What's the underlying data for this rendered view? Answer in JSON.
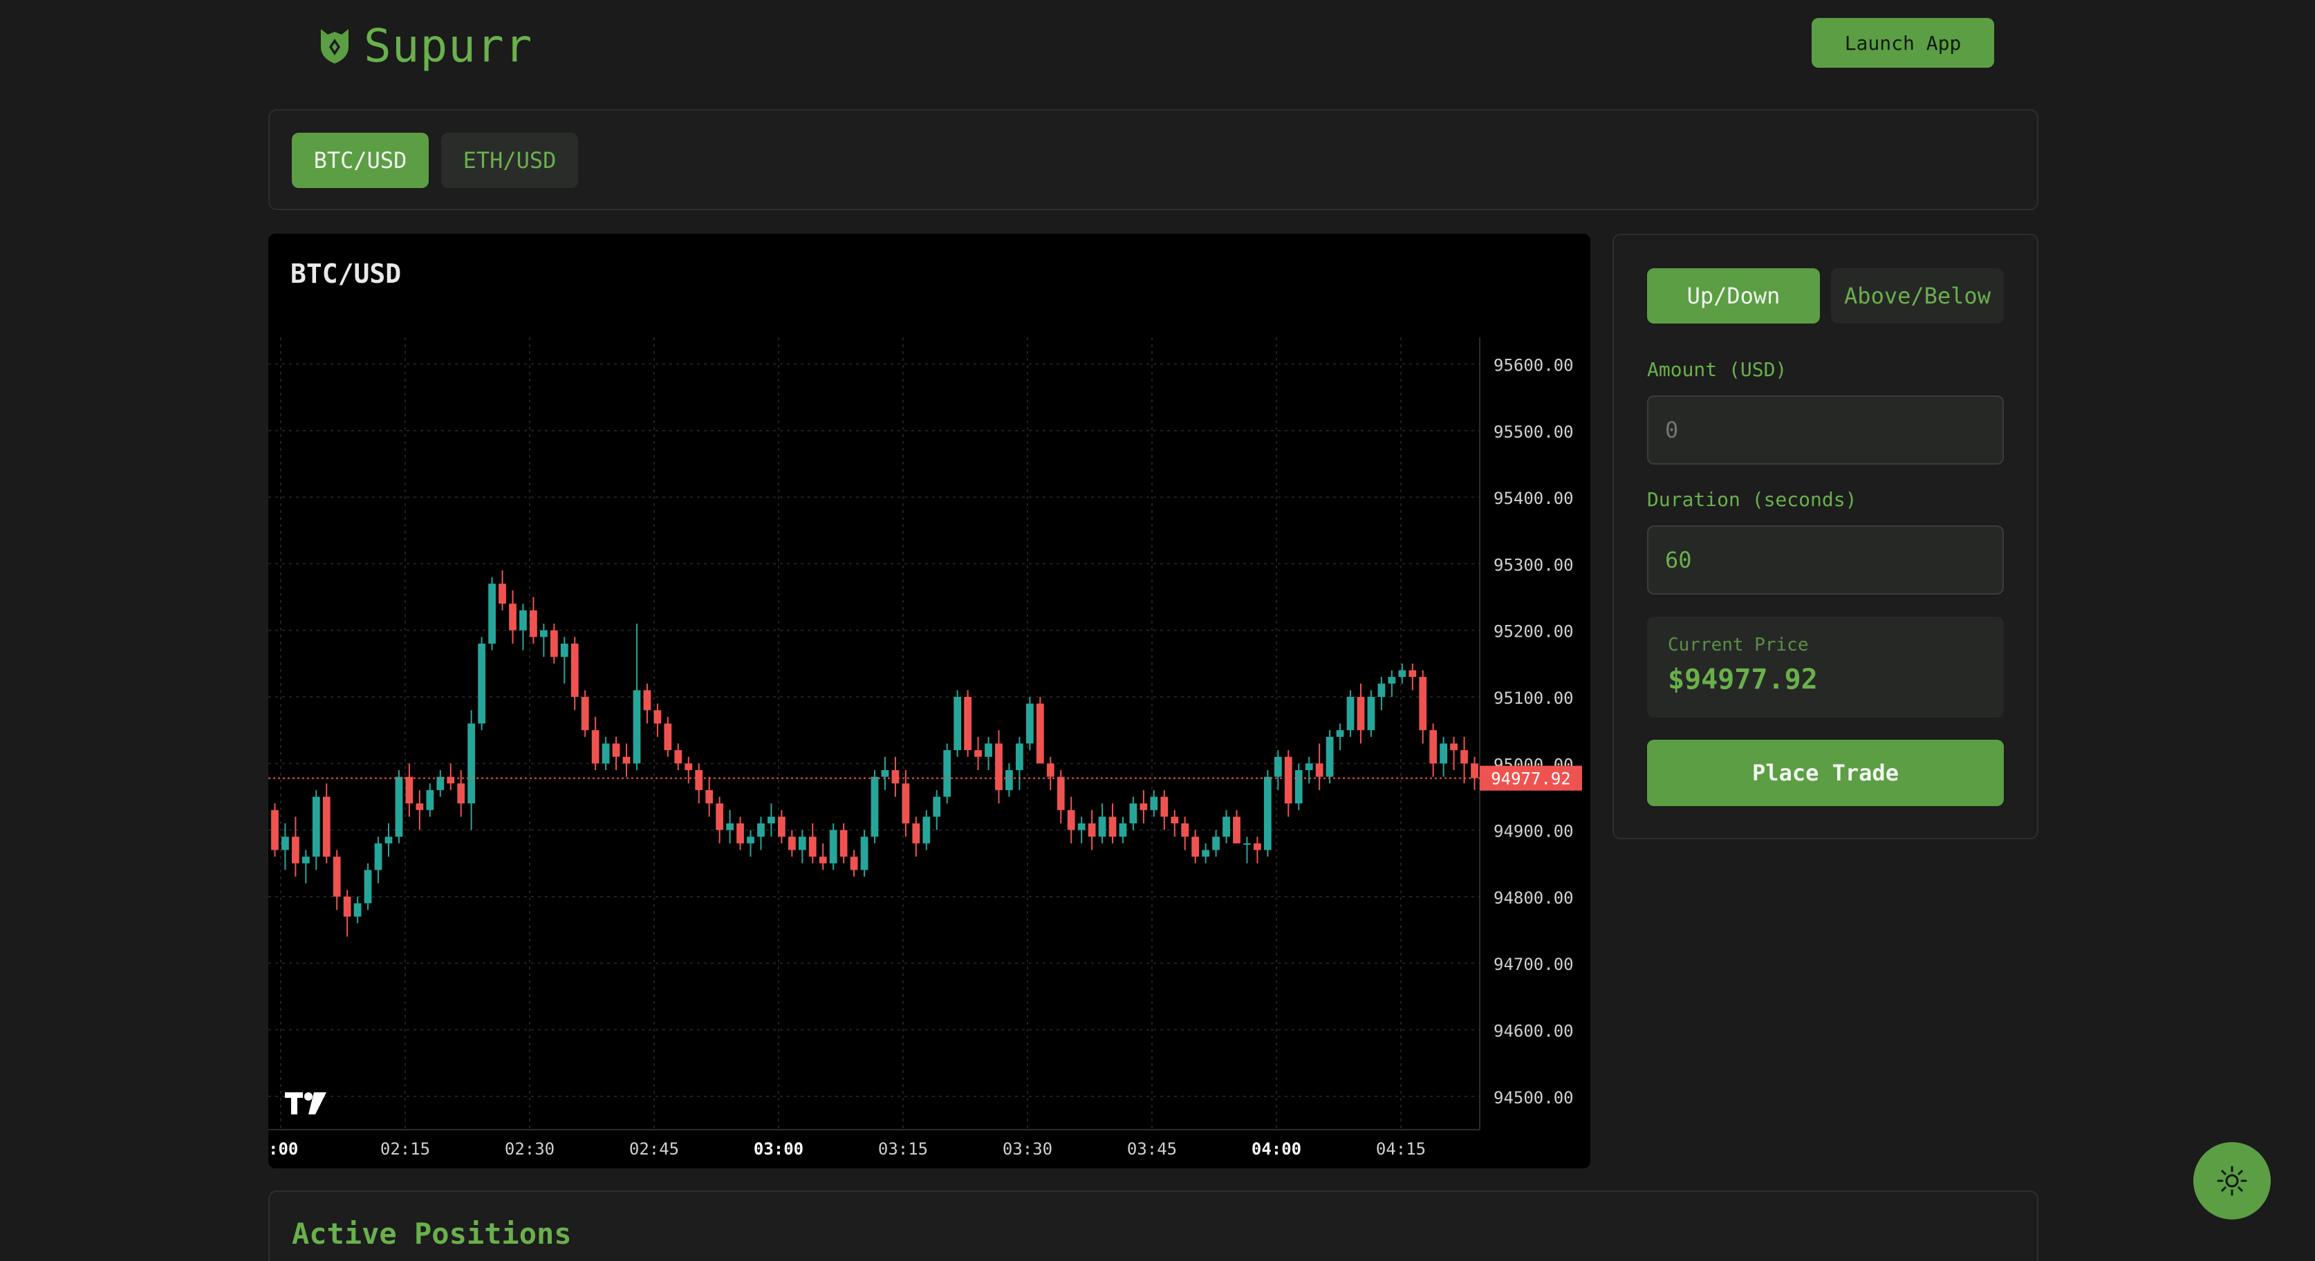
{
  "header": {
    "brand": "Supurr",
    "launch_label": "Launch App"
  },
  "pairs": [
    {
      "label": "BTC/USD",
      "active": true
    },
    {
      "label": "ETH/USD",
      "active": false
    }
  ],
  "chart": {
    "title": "BTC/USD",
    "last_price_label": "94977.92"
  },
  "chart_data": {
    "type": "candlestick",
    "title": "BTC/USD",
    "x_ticks": [
      ":00",
      "02:15",
      "02:30",
      "02:45",
      "03:00",
      "03:15",
      "03:30",
      "03:45",
      "04:00",
      "04:15"
    ],
    "bold_x_ticks": [
      ":00",
      "03:00",
      "04:00"
    ],
    "y_ticks": [
      "95600.00",
      "95500.00",
      "95400.00",
      "95300.00",
      "95200.00",
      "95100.00",
      "95000.00",
      "94900.00",
      "94800.00",
      "94700.00",
      "94600.00",
      "94500.00"
    ],
    "ylim": [
      94450,
      95640
    ],
    "last_price": 94977.92,
    "up_color": "#26a69a",
    "down_color": "#ef5350",
    "candles_ohlc": [
      [
        94930,
        94940,
        94860,
        94870
      ],
      [
        94870,
        94910,
        94840,
        94890
      ],
      [
        94890,
        94920,
        94830,
        94850
      ],
      [
        94850,
        94870,
        94820,
        94860
      ],
      [
        94860,
        94960,
        94840,
        94950
      ],
      [
        94950,
        94970,
        94850,
        94860
      ],
      [
        94860,
        94870,
        94780,
        94800
      ],
      [
        94800,
        94810,
        94740,
        94770
      ],
      [
        94770,
        94800,
        94760,
        94790
      ],
      [
        94790,
        94850,
        94780,
        94840
      ],
      [
        94840,
        94890,
        94820,
        94880
      ],
      [
        94880,
        94910,
        94860,
        94890
      ],
      [
        94890,
        94990,
        94880,
        94980
      ],
      [
        94980,
        95000,
        94920,
        94940
      ],
      [
        94940,
        94960,
        94900,
        94930
      ],
      [
        94930,
        94970,
        94920,
        94960
      ],
      [
        94960,
        94990,
        94950,
        94980
      ],
      [
        94980,
        95000,
        94960,
        94970
      ],
      [
        94970,
        94990,
        94920,
        94940
      ],
      [
        94940,
        95080,
        94900,
        95060
      ],
      [
        95060,
        95190,
        95050,
        95180
      ],
      [
        95180,
        95280,
        95170,
        95270
      ],
      [
        95270,
        95290,
        95230,
        95240
      ],
      [
        95240,
        95260,
        95180,
        95200
      ],
      [
        95200,
        95240,
        95170,
        95230
      ],
      [
        95230,
        95250,
        95180,
        95190
      ],
      [
        95190,
        95210,
        95160,
        95200
      ],
      [
        95200,
        95210,
        95150,
        95160
      ],
      [
        95160,
        95190,
        95120,
        95180
      ],
      [
        95180,
        95190,
        95080,
        95100
      ],
      [
        95100,
        95110,
        95040,
        95050
      ],
      [
        95050,
        95070,
        94990,
        95000
      ],
      [
        95000,
        95040,
        94990,
        95030
      ],
      [
        95030,
        95040,
        94990,
        95010
      ],
      [
        95010,
        95030,
        94980,
        95000
      ],
      [
        95000,
        95210,
        94990,
        95110
      ],
      [
        95110,
        95120,
        95060,
        95080
      ],
      [
        95080,
        95090,
        95040,
        95060
      ],
      [
        95060,
        95070,
        95010,
        95020
      ],
      [
        95020,
        95030,
        94990,
        95000
      ],
      [
        95000,
        95010,
        94970,
        94990
      ],
      [
        94990,
        95000,
        94940,
        94960
      ],
      [
        94960,
        94980,
        94920,
        94940
      ],
      [
        94940,
        94950,
        94880,
        94900
      ],
      [
        94900,
        94930,
        94880,
        94910
      ],
      [
        94910,
        94920,
        94870,
        94880
      ],
      [
        94880,
        94900,
        94860,
        94890
      ],
      [
        94890,
        94920,
        94870,
        94910
      ],
      [
        94910,
        94940,
        94890,
        94920
      ],
      [
        94920,
        94930,
        94880,
        94890
      ],
      [
        94890,
        94900,
        94860,
        94870
      ],
      [
        94870,
        94900,
        94850,
        94890
      ],
      [
        94890,
        94910,
        94850,
        94860
      ],
      [
        94860,
        94880,
        94840,
        94850
      ],
      [
        94850,
        94910,
        94840,
        94900
      ],
      [
        94900,
        94910,
        94850,
        94860
      ],
      [
        94860,
        94870,
        94830,
        94840
      ],
      [
        94840,
        94900,
        94830,
        94890
      ],
      [
        94890,
        94990,
        94880,
        94980
      ],
      [
        94980,
        95010,
        94960,
        94990
      ],
      [
        94990,
        95010,
        94950,
        94970
      ],
      [
        94970,
        94990,
        94890,
        94910
      ],
      [
        94910,
        94920,
        94860,
        94880
      ],
      [
        94880,
        94930,
        94870,
        94920
      ],
      [
        94920,
        94960,
        94900,
        94950
      ],
      [
        94950,
        95030,
        94940,
        95020
      ],
      [
        95020,
        95110,
        95010,
        95100
      ],
      [
        95100,
        95110,
        95010,
        95020
      ],
      [
        95020,
        95040,
        94990,
        95010
      ],
      [
        95010,
        95040,
        94990,
        95030
      ],
      [
        95030,
        95050,
        94940,
        94960
      ],
      [
        94960,
        95000,
        94950,
        94990
      ],
      [
        94990,
        95040,
        94960,
        95030
      ],
      [
        95030,
        95100,
        95020,
        95090
      ],
      [
        95090,
        95100,
        95020,
        95000
      ],
      [
        95000,
        95010,
        94960,
        94980
      ],
      [
        94980,
        94990,
        94910,
        94930
      ],
      [
        94930,
        94950,
        94880,
        94900
      ],
      [
        94900,
        94920,
        94880,
        94910
      ],
      [
        94910,
        94930,
        94870,
        94890
      ],
      [
        94890,
        94940,
        94880,
        94920
      ],
      [
        94920,
        94940,
        94880,
        94890
      ],
      [
        94890,
        94920,
        94880,
        94910
      ],
      [
        94910,
        94950,
        94900,
        94940
      ],
      [
        94940,
        94960,
        94910,
        94930
      ],
      [
        94930,
        94960,
        94920,
        94950
      ],
      [
        94950,
        94960,
        94900,
        94920
      ],
      [
        94920,
        94930,
        94890,
        94910
      ],
      [
        94910,
        94920,
        94870,
        94890
      ],
      [
        94890,
        94900,
        94850,
        94860
      ],
      [
        94860,
        94880,
        94850,
        94870
      ],
      [
        94870,
        94900,
        94860,
        94890
      ],
      [
        94890,
        94930,
        94880,
        94920
      ],
      [
        94920,
        94930,
        94880,
        94880
      ],
      [
        94880,
        94890,
        94850,
        94880
      ],
      [
        94880,
        94890,
        94850,
        94870
      ],
      [
        94870,
        94990,
        94860,
        94980
      ],
      [
        94980,
        95020,
        94960,
        95010
      ],
      [
        95010,
        95020,
        94920,
        94940
      ],
      [
        94940,
        95000,
        94930,
        94990
      ],
      [
        94990,
        95010,
        94970,
        95000
      ],
      [
        95000,
        95030,
        94960,
        94980
      ],
      [
        94980,
        95050,
        94970,
        95040
      ],
      [
        95040,
        95060,
        95020,
        95050
      ],
      [
        95050,
        95110,
        95040,
        95100
      ],
      [
        95100,
        95120,
        95030,
        95050
      ],
      [
        95050,
        95110,
        95040,
        95100
      ],
      [
        95100,
        95130,
        95080,
        95120
      ],
      [
        95120,
        95140,
        95100,
        95130
      ],
      [
        95130,
        95150,
        95120,
        95140
      ],
      [
        95140,
        95150,
        95110,
        95130
      ],
      [
        95130,
        95140,
        95030,
        95050
      ],
      [
        95050,
        95060,
        94980,
        95000
      ],
      [
        95000,
        95040,
        94980,
        95030
      ],
      [
        95030,
        95040,
        94990,
        95020
      ],
      [
        95020,
        95040,
        94970,
        95000
      ],
      [
        95000,
        95010,
        94960,
        94978
      ]
    ]
  },
  "trade": {
    "mode_updown": "Up/Down",
    "mode_abovebelow": "Above/Below",
    "amount_label": "Amount (USD)",
    "amount_placeholder": "0",
    "duration_label": "Duration (seconds)",
    "duration_value": "60",
    "current_price_label": "Current Price",
    "current_price_value": "$94977.92",
    "place_label": "Place Trade"
  },
  "positions": {
    "title": "Active Positions"
  },
  "colors": {
    "accent": "#5c9e44",
    "accent_text": "#6ab04c",
    "background": "#1a1b1a"
  },
  "icons": {
    "logo": "shield-cat-icon",
    "theme": "sun-icon"
  }
}
